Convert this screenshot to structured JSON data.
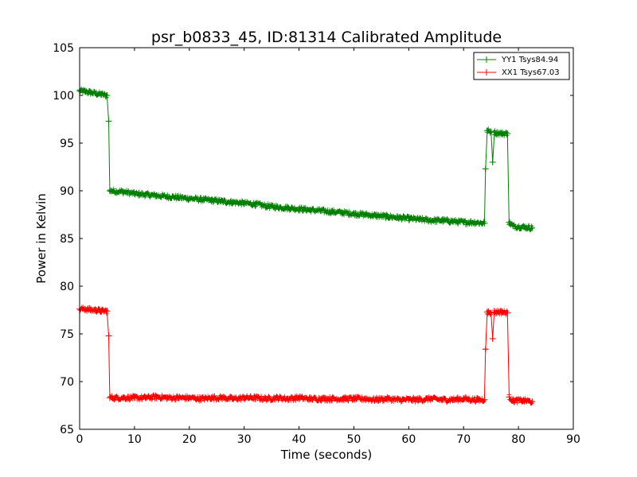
{
  "chart_data": {
    "type": "line",
    "title": "psr_b0833_45, ID:81314 Calibrated Amplitude",
    "xlabel": "Time (seconds)",
    "ylabel": "Power in Kelvin",
    "xlim": [
      0,
      90
    ],
    "ylim": [
      65,
      105
    ],
    "xticks": [
      "0",
      "10",
      "20",
      "30",
      "40",
      "50",
      "60",
      "70",
      "80",
      "90"
    ],
    "yticks": [
      "65",
      "70",
      "75",
      "80",
      "85",
      "90",
      "95",
      "100",
      "105"
    ],
    "grid": false,
    "legend_position": "top-right",
    "marker": "plus",
    "series": [
      {
        "name": "YY1 Tsys84.94",
        "color": "#008000",
        "points": [
          [
            0,
            100.5
          ],
          [
            1,
            100.4
          ],
          [
            2,
            100.3
          ],
          [
            3,
            100.2
          ],
          [
            4,
            100.1
          ],
          [
            5,
            100.0
          ],
          [
            5.3,
            97.3
          ],
          [
            5.5,
            90.0
          ],
          [
            8,
            89.9
          ],
          [
            10,
            89.7
          ],
          [
            12,
            89.6
          ],
          [
            14,
            89.5
          ],
          [
            16,
            89.4
          ],
          [
            18,
            89.3
          ],
          [
            20,
            89.2
          ],
          [
            22,
            89.1
          ],
          [
            24,
            89.0
          ],
          [
            26,
            88.9
          ],
          [
            28,
            88.8
          ],
          [
            30,
            88.7
          ],
          [
            32,
            88.6
          ],
          [
            34,
            88.4
          ],
          [
            36,
            88.3
          ],
          [
            38,
            88.2
          ],
          [
            40,
            88.1
          ],
          [
            42,
            88.0
          ],
          [
            44,
            87.9
          ],
          [
            46,
            87.8
          ],
          [
            48,
            87.7
          ],
          [
            50,
            87.6
          ],
          [
            52,
            87.5
          ],
          [
            54,
            87.4
          ],
          [
            56,
            87.3
          ],
          [
            58,
            87.2
          ],
          [
            60,
            87.1
          ],
          [
            62,
            87.0
          ],
          [
            64,
            86.9
          ],
          [
            66,
            86.9
          ],
          [
            68,
            86.8
          ],
          [
            70,
            86.7
          ],
          [
            72,
            86.7
          ],
          [
            73.8,
            86.6
          ],
          [
            74.0,
            92.3
          ],
          [
            74.3,
            96.3
          ],
          [
            75.0,
            96.2
          ],
          [
            75.3,
            93.0
          ],
          [
            75.6,
            96.1
          ],
          [
            77,
            96.0
          ],
          [
            78,
            96.0
          ],
          [
            78.3,
            86.7
          ],
          [
            79,
            86.3
          ],
          [
            81,
            86.2
          ],
          [
            82.5,
            86.1
          ]
        ]
      },
      {
        "name": "XX1 Tsys67.03",
        "color": "#ff0000",
        "points": [
          [
            0,
            77.6
          ],
          [
            1,
            77.6
          ],
          [
            2,
            77.5
          ],
          [
            3,
            77.5
          ],
          [
            4,
            77.4
          ],
          [
            5,
            77.4
          ],
          [
            5.3,
            74.8
          ],
          [
            5.5,
            68.3
          ],
          [
            8,
            68.3
          ],
          [
            10,
            68.3
          ],
          [
            12,
            68.3
          ],
          [
            14,
            68.4
          ],
          [
            16,
            68.3
          ],
          [
            18,
            68.3
          ],
          [
            20,
            68.3
          ],
          [
            22,
            68.2
          ],
          [
            24,
            68.3
          ],
          [
            26,
            68.3
          ],
          [
            28,
            68.2
          ],
          [
            30,
            68.3
          ],
          [
            32,
            68.3
          ],
          [
            34,
            68.2
          ],
          [
            36,
            68.3
          ],
          [
            38,
            68.2
          ],
          [
            40,
            68.3
          ],
          [
            42,
            68.2
          ],
          [
            44,
            68.2
          ],
          [
            46,
            68.2
          ],
          [
            48,
            68.2
          ],
          [
            50,
            68.2
          ],
          [
            52,
            68.2
          ],
          [
            54,
            68.1
          ],
          [
            56,
            68.2
          ],
          [
            58,
            68.1
          ],
          [
            60,
            68.1
          ],
          [
            62,
            68.1
          ],
          [
            64,
            68.2
          ],
          [
            66,
            68.1
          ],
          [
            68,
            68.1
          ],
          [
            70,
            68.2
          ],
          [
            72,
            68.1
          ],
          [
            73.8,
            68.1
          ],
          [
            74.0,
            73.4
          ],
          [
            74.3,
            77.3
          ],
          [
            75.0,
            77.2
          ],
          [
            75.3,
            74.5
          ],
          [
            75.6,
            77.3
          ],
          [
            77,
            77.3
          ],
          [
            78,
            77.2
          ],
          [
            78.3,
            68.4
          ],
          [
            79,
            68.0
          ],
          [
            81,
            68.0
          ],
          [
            82.5,
            67.9
          ]
        ]
      }
    ]
  }
}
